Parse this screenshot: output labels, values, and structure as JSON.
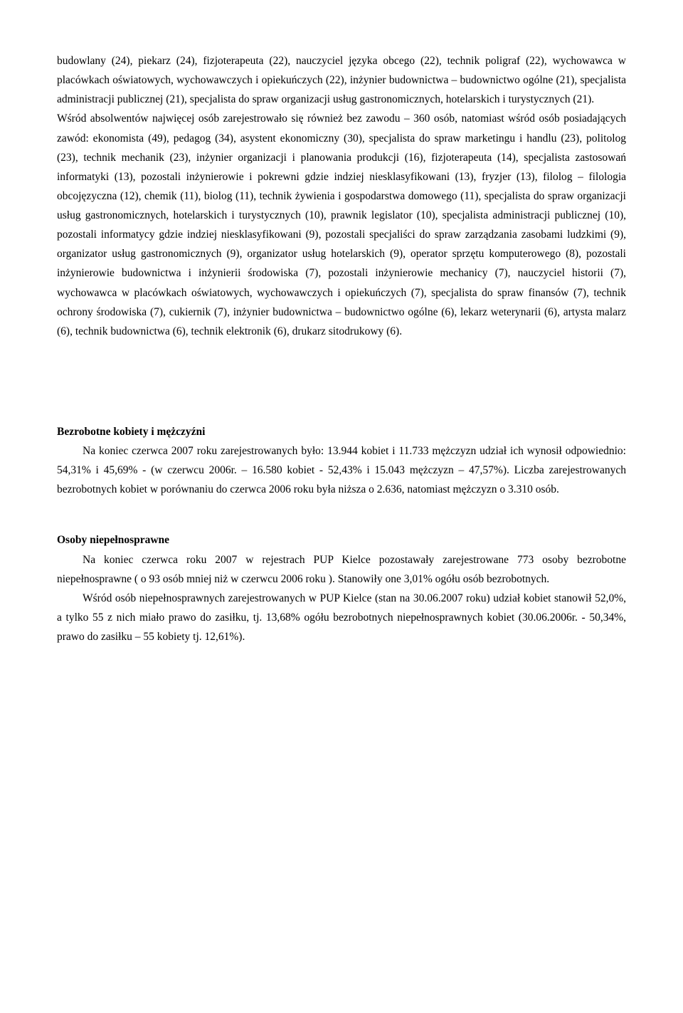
{
  "para1": "budowlany (24), piekarz (24), fizjoterapeuta (22), nauczyciel języka obcego (22), technik poligraf (22), wychowawca w placówkach oświatowych, wychowawczych i opiekuńczych (22), inżynier budownictwa – budownictwo ogólne (21), specjalista administracji publicznej (21), specjalista do spraw organizacji usług gastronomicznych, hotelarskich i turystycznych (21).",
  "para2": "Wśród absolwentów najwięcej osób zarejestrowało się również bez zawodu – 360 osób, natomiast wśród osób posiadających zawód: ekonomista (49), pedagog (34), asystent ekonomiczny (30), specjalista do spraw marketingu i handlu (23), politolog (23), technik mechanik (23), inżynier organizacji i planowania produkcji (16), fizjoterapeuta (14), specjalista zastosowań informatyki (13), pozostali inżynierowie i pokrewni gdzie indziej niesklasyfikowani (13), fryzjer (13), filolog – filologia obcojęzyczna (12), chemik (11), biolog (11), technik żywienia i gospodarstwa domowego (11), specjalista do spraw organizacji usług gastronomicznych, hotelarskich i turystycznych (10), prawnik legislator (10), specjalista administracji publicznej (10), pozostali informatycy gdzie indziej niesklasyfikowani (9), pozostali specjaliści do spraw zarządzania zasobami ludzkimi (9), organizator usług gastronomicznych (9), organizator usług hotelarskich (9), operator sprzętu komputerowego (8), pozostali inżynierowie budownictwa i inżynierii środowiska (7), pozostali inżynierowie mechanicy (7), nauczyciel historii (7), wychowawca w placówkach oświatowych, wychowawczych i opiekuńczych (7), specjalista do spraw finansów (7), technik ochrony środowiska (7), cukiernik (7), inżynier budownictwa – budownictwo ogólne (6), lekarz weterynarii (6), artysta malarz (6), technik budownictwa (6), technik elektronik (6), drukarz sitodrukowy (6).",
  "section1_heading": "Bezrobotne kobiety i mężczyźni",
  "section1_p1": "Na koniec czerwca 2007 roku zarejestrowanych było: 13.944 kobiet i 11.733 mężczyzn udział ich wynosił odpowiednio: 54,31% i 45,69% - (w czerwcu 2006r. – 16.580 kobiet - 52,43% i 15.043 mężczyzn – 47,57%). Liczba zarejestrowanych bezrobotnych kobiet w porównaniu do czerwca 2006 roku była niższa o 2.636, natomiast mężczyzn o 3.310 osób.",
  "section2_heading": "Osoby niepełnosprawne",
  "section2_p1": "Na koniec czerwca roku 2007 w rejestrach PUP Kielce pozostawały zarejestrowane 773 osoby bezrobotne niepełnosprawne ( o 93 osób mniej niż w czerwcu 2006 roku ). Stanowiły one 3,01% ogółu osób bezrobotnych.",
  "section2_p2": "Wśród osób niepełnosprawnych zarejestrowanych w PUP Kielce (stan na 30.06.2007 roku) udział kobiet stanowił 52,0%, a tylko 55 z nich miało prawo do zasiłku, tj. 13,68% ogółu bezrobotnych niepełnosprawnych kobiet (30.06.2006r. - 50,34%, prawo do zasiłku – 55 kobiety tj. 12,61%)."
}
